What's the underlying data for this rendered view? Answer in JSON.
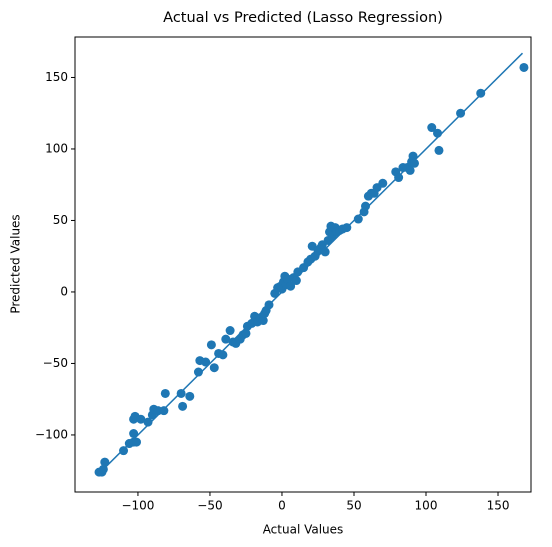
{
  "chart_data": {
    "type": "scatter",
    "title": "Actual vs Predicted (Lasso Regression)",
    "x_label": "Actual Values",
    "y_label": "Predicted Values",
    "color": "#1f77b4",
    "xlim": [
      -143.7,
      172.9
    ],
    "ylim": [
      -139.9,
      178.3
    ],
    "xticks": [
      {
        "value": -100,
        "label": "−100"
      },
      {
        "value": -50,
        "label": "−50"
      },
      0,
      50,
      100,
      150
    ],
    "yticks": [
      {
        "value": -100,
        "label": "−100"
      },
      {
        "value": -50,
        "label": "−50"
      },
      0,
      50,
      100,
      150
    ],
    "line": {
      "x": [
        -127,
        167
      ],
      "y": [
        -127,
        167
      ]
    },
    "x": [
      -127,
      -125,
      -124,
      -123,
      -110,
      -106,
      -103,
      -101,
      -103,
      -103,
      -102,
      -98,
      -93,
      -90,
      -89,
      -86,
      -82,
      -81,
      -70,
      -69,
      -64,
      -58,
      -57,
      -53,
      -49,
      -47,
      -44,
      -41,
      -39,
      -36,
      -34,
      -32,
      -29,
      -27,
      -25,
      -24,
      -21,
      -19,
      -17,
      -15,
      -13,
      -12,
      -11,
      -9,
      -5,
      -3,
      -1,
      0,
      1,
      2,
      3,
      4,
      6,
      8,
      10,
      11,
      15,
      18,
      20,
      21,
      23,
      25,
      27,
      28,
      30,
      32,
      33,
      34,
      35,
      37,
      38,
      40,
      42,
      45,
      53,
      57,
      58,
      60,
      62,
      64,
      66,
      70,
      79,
      81,
      84,
      87,
      89,
      90,
      91,
      92,
      104,
      108,
      109,
      124,
      138,
      168
    ],
    "y": [
      -126,
      -126,
      -124,
      -119,
      -111,
      -106,
      -105,
      -105,
      -99,
      -89,
      -87,
      -89,
      -91,
      -86,
      -82,
      -83,
      -83,
      -71,
      -71,
      -80,
      -73,
      -56,
      -48,
      -49,
      -37,
      -53,
      -43,
      -44,
      -33,
      -27,
      -35,
      -36,
      -33,
      -30,
      -29,
      -24,
      -22,
      -17,
      -21,
      -18,
      -20,
      -15,
      -13,
      -9,
      -1,
      3,
      4,
      2,
      7,
      11,
      5,
      9,
      4,
      10,
      8,
      14,
      17,
      21,
      23,
      32,
      25,
      29,
      31,
      33,
      28,
      36,
      42,
      46,
      39,
      45,
      42,
      43,
      44,
      45,
      51,
      56,
      60,
      67,
      69,
      69,
      73,
      76,
      84,
      80,
      87,
      87,
      85,
      91,
      95,
      90,
      115,
      111,
      99,
      125,
      139,
      157
    ]
  }
}
